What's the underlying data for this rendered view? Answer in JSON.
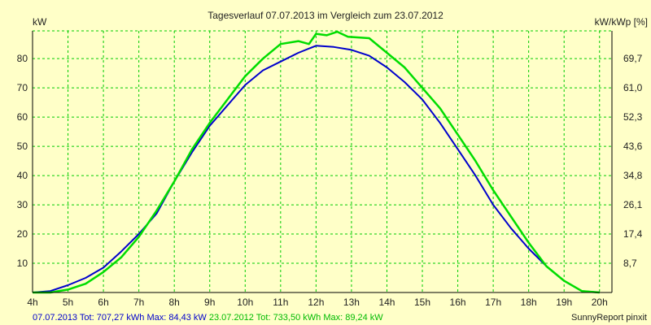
{
  "chart_data": {
    "type": "line",
    "title": "Tagesverlauf 07.07.2013 im Vergleich zum 23.07.2012",
    "ylabel_left": "kW",
    "ylabel_right": "kW/kWp [%]",
    "x_ticks": [
      "4h",
      "5h",
      "6h",
      "7h",
      "8h",
      "9h",
      "10h",
      "11h",
      "12h",
      "13h",
      "14h",
      "15h",
      "16h",
      "17h",
      "18h",
      "19h",
      "20h"
    ],
    "y_left_ticks": [
      10,
      20,
      30,
      40,
      50,
      60,
      70,
      80
    ],
    "y_right_ticks": [
      "8,7",
      "17,4",
      "26,1",
      "34,8",
      "43,6",
      "52,3",
      "61,0",
      "69,7"
    ],
    "xlim": [
      4,
      20.35
    ],
    "ylim": [
      0,
      89.5
    ],
    "grid": true,
    "series": [
      {
        "name": "07.07.2013",
        "color": "#0000cc",
        "points": [
          [
            4,
            0
          ],
          [
            4.5,
            0.5
          ],
          [
            5,
            2.5
          ],
          [
            5.5,
            5
          ],
          [
            6,
            8.5
          ],
          [
            6.5,
            14
          ],
          [
            7,
            20
          ],
          [
            7.5,
            27
          ],
          [
            8,
            38
          ],
          [
            8.5,
            48
          ],
          [
            9,
            57
          ],
          [
            9.5,
            64
          ],
          [
            10,
            71
          ],
          [
            10.5,
            76
          ],
          [
            11,
            79
          ],
          [
            11.5,
            82
          ],
          [
            12,
            84.4
          ],
          [
            12.5,
            84
          ],
          [
            13,
            83
          ],
          [
            13.5,
            81
          ],
          [
            14,
            77
          ],
          [
            14.5,
            72
          ],
          [
            15,
            66
          ],
          [
            15.5,
            58
          ],
          [
            16,
            49
          ],
          [
            16.5,
            40
          ],
          [
            17,
            30
          ],
          [
            17.5,
            22
          ],
          [
            18,
            15
          ],
          [
            18.5,
            9
          ],
          [
            19,
            4
          ],
          [
            19.5,
            0.5
          ],
          [
            20,
            0
          ]
        ]
      },
      {
        "name": "23.07.2012",
        "color": "#00dd00",
        "points": [
          [
            4,
            0
          ],
          [
            4.5,
            0
          ],
          [
            5,
            1
          ],
          [
            5.5,
            3
          ],
          [
            6,
            7
          ],
          [
            6.5,
            12
          ],
          [
            7,
            19
          ],
          [
            7.5,
            28
          ],
          [
            8,
            38
          ],
          [
            8.5,
            49
          ],
          [
            9,
            58
          ],
          [
            9.5,
            66
          ],
          [
            10,
            74
          ],
          [
            10.5,
            80
          ],
          [
            11,
            85
          ],
          [
            11.5,
            86
          ],
          [
            11.8,
            85
          ],
          [
            12,
            88.5
          ],
          [
            12.3,
            88
          ],
          [
            12.6,
            89.2
          ],
          [
            12.9,
            87.5
          ],
          [
            13.5,
            87
          ],
          [
            14,
            82
          ],
          [
            14.5,
            77
          ],
          [
            15,
            70
          ],
          [
            15.5,
            63
          ],
          [
            16,
            54
          ],
          [
            16.5,
            45
          ],
          [
            17,
            35
          ],
          [
            17.5,
            26
          ],
          [
            18,
            17
          ],
          [
            18.5,
            9
          ],
          [
            19,
            4
          ],
          [
            19.5,
            0.5
          ],
          [
            20,
            0
          ]
        ]
      }
    ],
    "footer_items": [
      {
        "text": "07.07.2013 Tot: 707,27 kWh Max: 84,43 kW",
        "color": "#0000cc"
      },
      {
        "text": " 23.07.2012 Tot: 733,50 kWh Max: 89,24 kW",
        "color": "#00bb00"
      }
    ],
    "credit": "SunnyReport pinxit"
  }
}
